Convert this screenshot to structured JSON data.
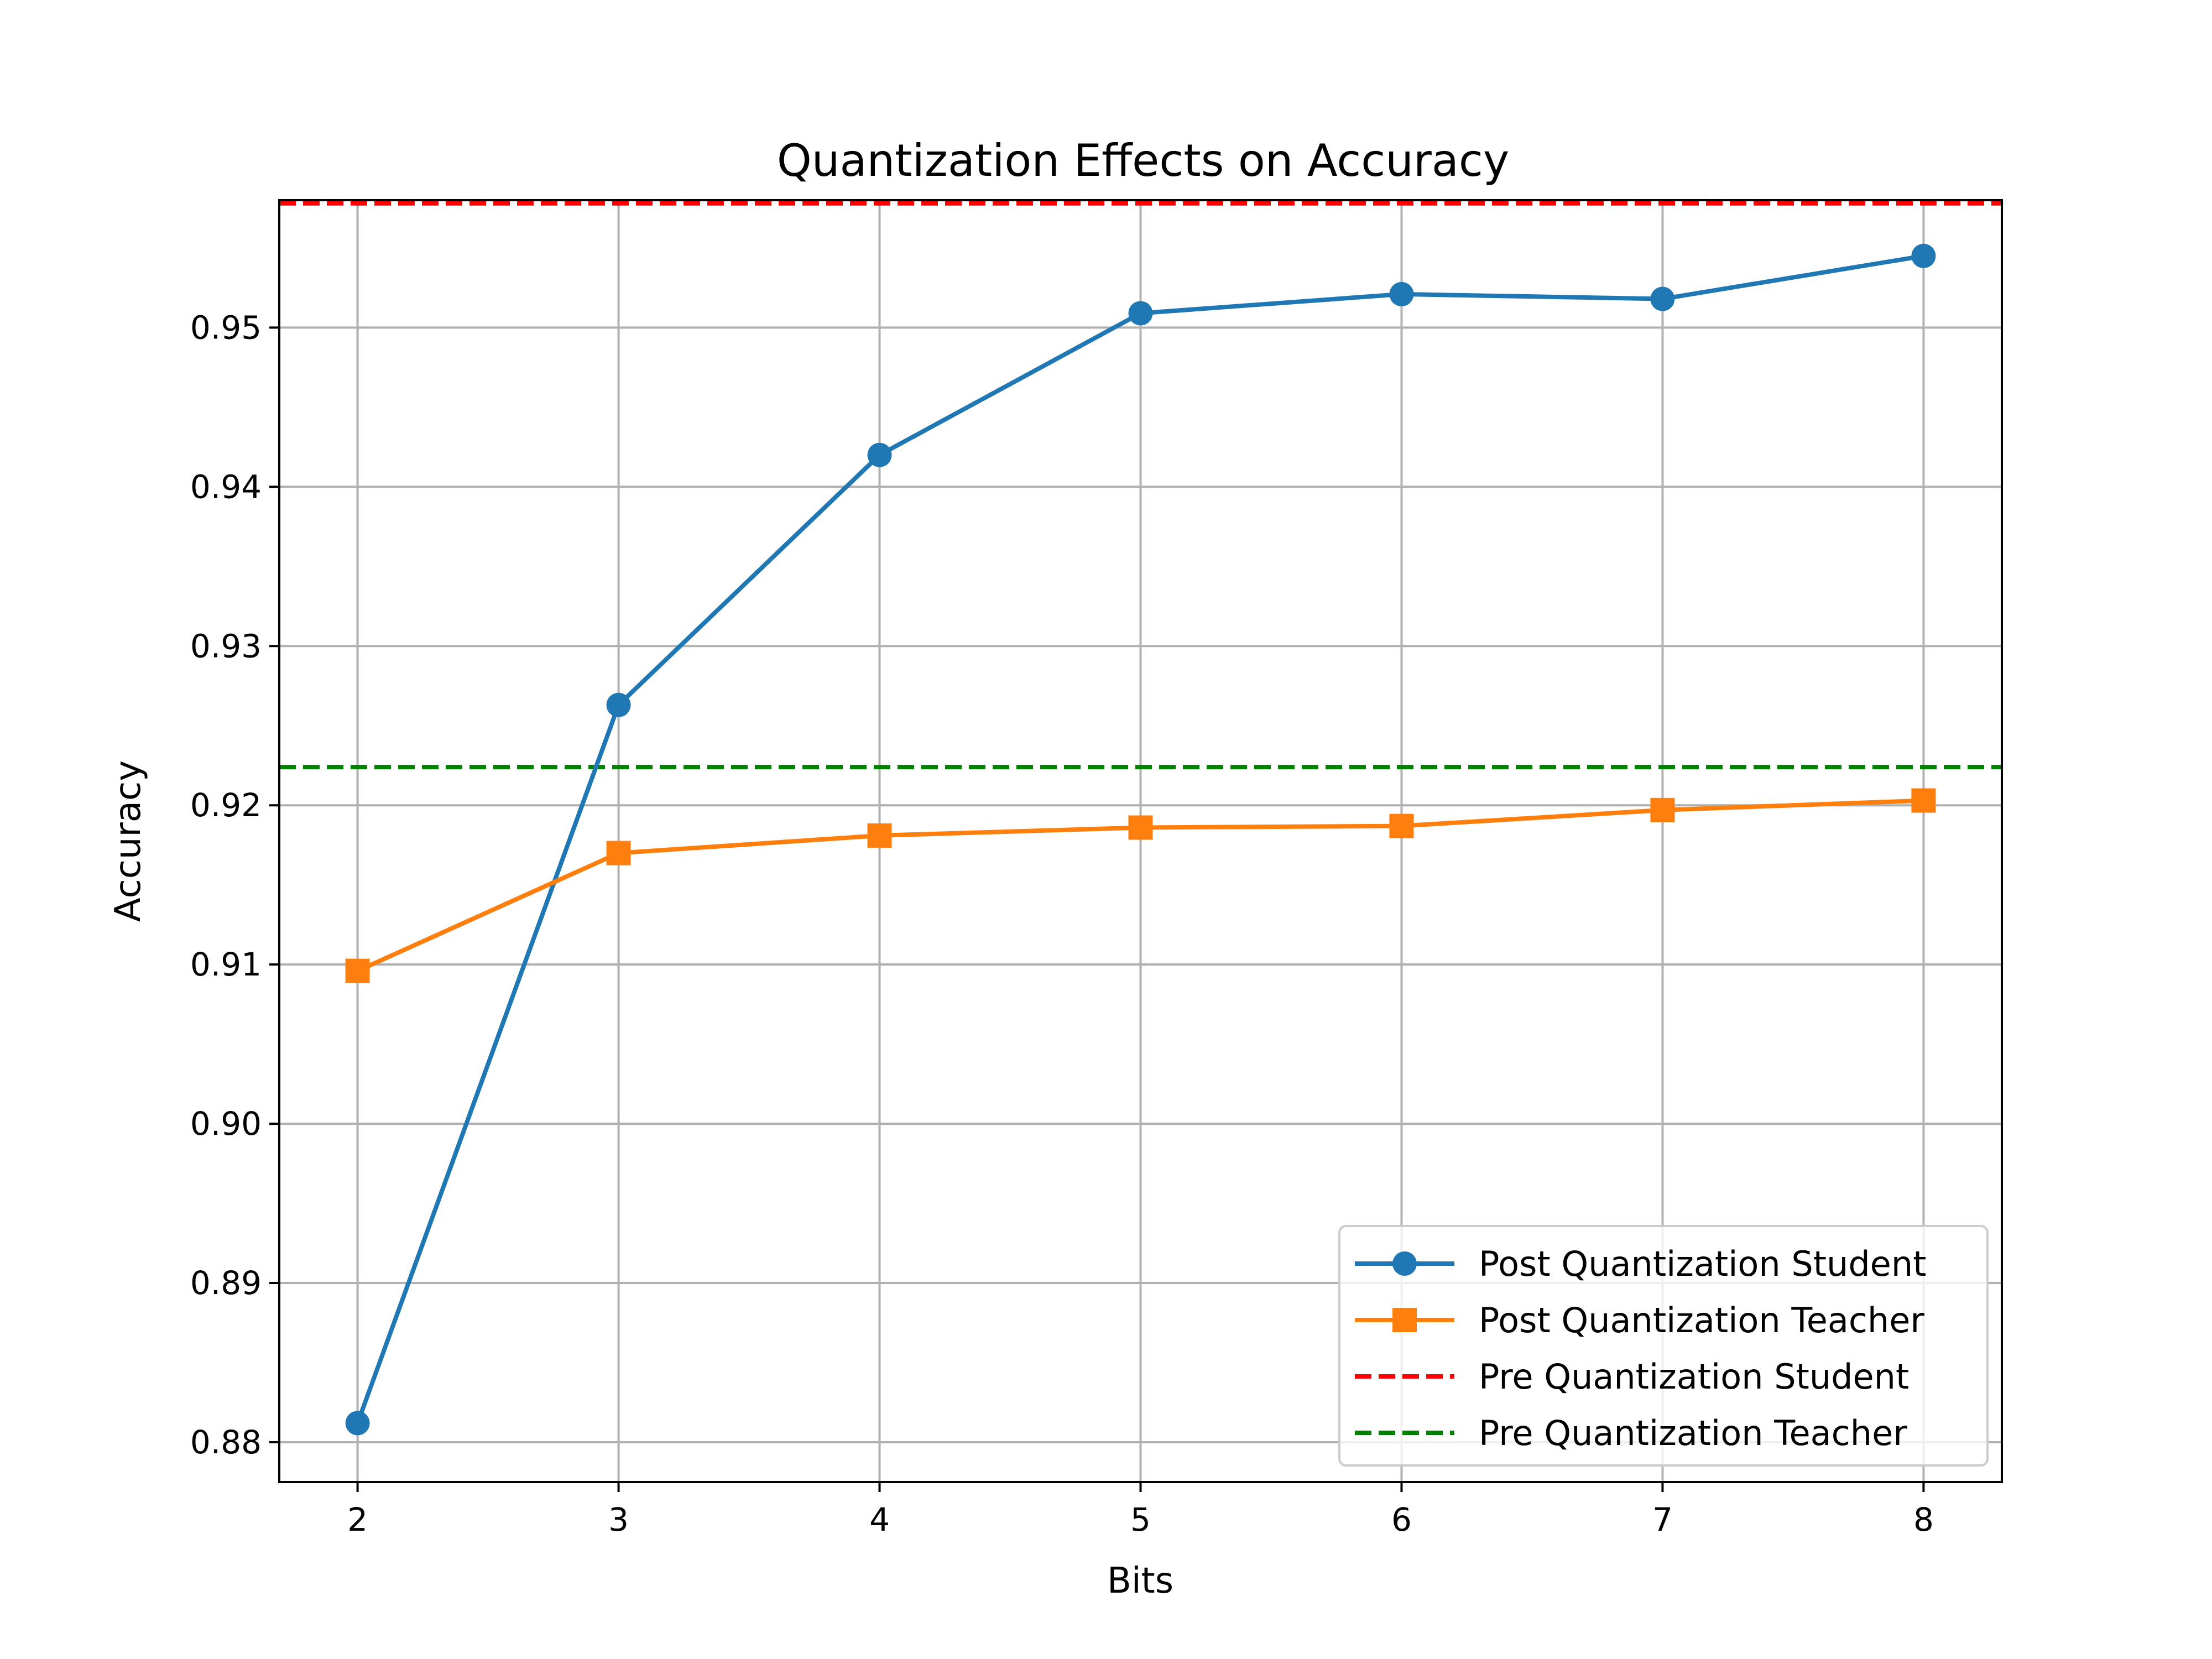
{
  "chart_data": {
    "type": "line",
    "title": "Quantization Effects on Accuracy",
    "xlabel": "Bits",
    "ylabel": "Accuracy",
    "x": [
      2,
      3,
      4,
      5,
      6,
      7,
      8
    ],
    "xlim": [
      1.7,
      8.3
    ],
    "ylim": [
      0.8775,
      0.958
    ],
    "xticks": [
      "2",
      "3",
      "4",
      "5",
      "6",
      "7",
      "8"
    ],
    "yticks": [
      "0.88",
      "0.89",
      "0.90",
      "0.91",
      "0.92",
      "0.93",
      "0.94",
      "0.95"
    ],
    "grid": true,
    "legend_position": "lower-right",
    "series": [
      {
        "name": "Post Quantization Student",
        "values": [
          0.8812,
          0.9263,
          0.942,
          0.9509,
          0.9521,
          0.9518,
          0.9545
        ],
        "color": "#1f77b4",
        "marker": "circle",
        "style": "solid"
      },
      {
        "name": "Post Quantization Teacher",
        "values": [
          0.9096,
          0.917,
          0.9181,
          0.9186,
          0.9187,
          0.9197,
          0.9203
        ],
        "color": "#ff7f0e",
        "marker": "square",
        "style": "solid"
      }
    ],
    "reference_lines": [
      {
        "name": "Pre Quantization Student",
        "value": 0.9578,
        "color": "#ff0000",
        "style": "dashed"
      },
      {
        "name": "Pre Quantization Teacher",
        "value": 0.9224,
        "color": "#008000",
        "style": "dashed"
      }
    ]
  }
}
